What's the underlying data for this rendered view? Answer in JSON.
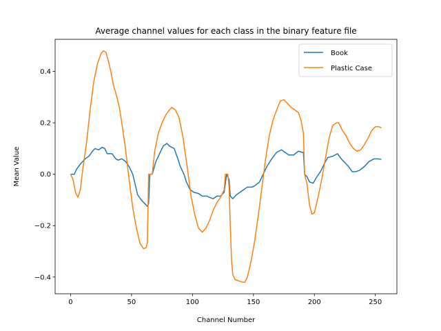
{
  "chart_data": {
    "type": "line",
    "title": "Average channel values for each class in the binary feature file",
    "xlabel": "Channel Number",
    "ylabel": "Mean Value",
    "xlim": [
      -12.7,
      267.7
    ],
    "ylim": [
      -0.465,
      0.525
    ],
    "xticks": [
      0,
      50,
      100,
      150,
      200,
      250
    ],
    "yticks": [
      -0.4,
      -0.2,
      0.0,
      0.2,
      0.4
    ],
    "grid": false,
    "legend_position": "top-right",
    "series": [
      {
        "name": "Book",
        "color": "#1f77b4",
        "points": [
          [
            0,
            0.0
          ],
          [
            3,
            0.0
          ],
          [
            5,
            0.02
          ],
          [
            8,
            0.04
          ],
          [
            12,
            0.06
          ],
          [
            15,
            0.07
          ],
          [
            18,
            0.09
          ],
          [
            20,
            0.1
          ],
          [
            23,
            0.095
          ],
          [
            26,
            0.105
          ],
          [
            28,
            0.1
          ],
          [
            30,
            0.08
          ],
          [
            34,
            0.08
          ],
          [
            37,
            0.06
          ],
          [
            39,
            0.055
          ],
          [
            42,
            0.06
          ],
          [
            45,
            0.05
          ],
          [
            48,
            0.03
          ],
          [
            51,
            0.0
          ],
          [
            53,
            -0.04
          ],
          [
            55,
            -0.08
          ],
          [
            58,
            -0.1
          ],
          [
            61,
            -0.115
          ],
          [
            63,
            -0.125
          ],
          [
            64,
            -0.115
          ],
          [
            65,
            0.0
          ],
          [
            67,
            0.0
          ],
          [
            70,
            0.05
          ],
          [
            73,
            0.08
          ],
          [
            76,
            0.11
          ],
          [
            79,
            0.12
          ],
          [
            81,
            0.11
          ],
          [
            85,
            0.1
          ],
          [
            88,
            0.06
          ],
          [
            90,
            0.03
          ],
          [
            93,
            0.0
          ],
          [
            95,
            -0.03
          ],
          [
            98,
            -0.06
          ],
          [
            101,
            -0.07
          ],
          [
            105,
            -0.075
          ],
          [
            108,
            -0.085
          ],
          [
            112,
            -0.085
          ],
          [
            114,
            -0.09
          ],
          [
            117,
            -0.095
          ],
          [
            120,
            -0.085
          ],
          [
            123,
            -0.085
          ],
          [
            126,
            -0.07
          ],
          [
            128,
            0.0
          ],
          [
            130,
            -0.02
          ],
          [
            131,
            -0.085
          ],
          [
            133,
            -0.095
          ],
          [
            136,
            -0.08
          ],
          [
            139,
            -0.07
          ],
          [
            142,
            -0.06
          ],
          [
            145,
            -0.05
          ],
          [
            149,
            -0.05
          ],
          [
            151,
            -0.045
          ],
          [
            155,
            -0.03
          ],
          [
            158,
            0.0
          ],
          [
            161,
            0.03
          ],
          [
            165,
            0.06
          ],
          [
            169,
            0.085
          ],
          [
            173,
            0.095
          ],
          [
            176,
            0.085
          ],
          [
            179,
            0.075
          ],
          [
            183,
            0.075
          ],
          [
            187,
            0.09
          ],
          [
            190,
            0.085
          ],
          [
            191,
            0.085
          ],
          [
            192,
            0.0
          ],
          [
            194,
            -0.01
          ],
          [
            196,
            -0.03
          ],
          [
            199,
            -0.035
          ],
          [
            202,
            -0.01
          ],
          [
            205,
            0.01
          ],
          [
            208,
            0.04
          ],
          [
            211,
            0.065
          ],
          [
            215,
            0.07
          ],
          [
            219,
            0.08
          ],
          [
            222,
            0.06
          ],
          [
            225,
            0.045
          ],
          [
            228,
            0.03
          ],
          [
            231,
            0.01
          ],
          [
            234,
            0.01
          ],
          [
            237,
            0.015
          ],
          [
            241,
            0.03
          ],
          [
            245,
            0.05
          ],
          [
            249,
            0.06
          ],
          [
            252,
            0.06
          ],
          [
            255,
            0.058
          ]
        ]
      },
      {
        "name": "Plastic Case",
        "color": "#ff7f0e",
        "points": [
          [
            0,
            0.0
          ],
          [
            2,
            -0.02
          ],
          [
            4,
            -0.07
          ],
          [
            6,
            -0.09
          ],
          [
            8,
            -0.06
          ],
          [
            10,
            0.02
          ],
          [
            13,
            0.12
          ],
          [
            16,
            0.25
          ],
          [
            19,
            0.36
          ],
          [
            22,
            0.43
          ],
          [
            25,
            0.47
          ],
          [
            27,
            0.48
          ],
          [
            29,
            0.475
          ],
          [
            31,
            0.44
          ],
          [
            33,
            0.4
          ],
          [
            35,
            0.35
          ],
          [
            38,
            0.3
          ],
          [
            40,
            0.26
          ],
          [
            42,
            0.2
          ],
          [
            45,
            0.1
          ],
          [
            48,
            -0.02
          ],
          [
            51,
            -0.13
          ],
          [
            54,
            -0.21
          ],
          [
            57,
            -0.27
          ],
          [
            60,
            -0.29
          ],
          [
            62,
            -0.285
          ],
          [
            63,
            -0.265
          ],
          [
            64,
            0.0
          ],
          [
            67,
            0.0
          ],
          [
            69,
            0.09
          ],
          [
            72,
            0.16
          ],
          [
            75,
            0.2
          ],
          [
            78,
            0.23
          ],
          [
            81,
            0.25
          ],
          [
            83,
            0.26
          ],
          [
            86,
            0.25
          ],
          [
            89,
            0.22
          ],
          [
            92,
            0.15
          ],
          [
            95,
            0.05
          ],
          [
            97,
            -0.02
          ],
          [
            99,
            -0.09
          ],
          [
            102,
            -0.16
          ],
          [
            105,
            -0.21
          ],
          [
            108,
            -0.225
          ],
          [
            111,
            -0.21
          ],
          [
            114,
            -0.18
          ],
          [
            117,
            -0.14
          ],
          [
            120,
            -0.11
          ],
          [
            123,
            -0.09
          ],
          [
            126,
            -0.06
          ],
          [
            127,
            0.0
          ],
          [
            129,
            0.0
          ],
          [
            130,
            -0.05
          ],
          [
            131,
            -0.2
          ],
          [
            132,
            -0.33
          ],
          [
            133,
            -0.39
          ],
          [
            135,
            -0.41
          ],
          [
            138,
            -0.415
          ],
          [
            141,
            -0.42
          ],
          [
            143,
            -0.42
          ],
          [
            145,
            -0.4
          ],
          [
            148,
            -0.34
          ],
          [
            151,
            -0.26
          ],
          [
            154,
            -0.16
          ],
          [
            157,
            -0.05
          ],
          [
            160,
            0.06
          ],
          [
            163,
            0.15
          ],
          [
            166,
            0.21
          ],
          [
            169,
            0.25
          ],
          [
            172,
            0.285
          ],
          [
            175,
            0.29
          ],
          [
            178,
            0.275
          ],
          [
            181,
            0.26
          ],
          [
            184,
            0.25
          ],
          [
            187,
            0.24
          ],
          [
            189,
            0.21
          ],
          [
            191,
            0.16
          ],
          [
            192,
            0.0
          ],
          [
            194,
            -0.04
          ],
          [
            196,
            -0.12
          ],
          [
            198,
            -0.155
          ],
          [
            200,
            -0.15
          ],
          [
            203,
            -0.09
          ],
          [
            206,
            -0.02
          ],
          [
            209,
            0.06
          ],
          [
            212,
            0.14
          ],
          [
            215,
            0.19
          ],
          [
            218,
            0.2
          ],
          [
            220,
            0.2
          ],
          [
            223,
            0.17
          ],
          [
            226,
            0.15
          ],
          [
            229,
            0.12
          ],
          [
            232,
            0.1
          ],
          [
            235,
            0.09
          ],
          [
            238,
            0.095
          ],
          [
            241,
            0.115
          ],
          [
            244,
            0.14
          ],
          [
            247,
            0.17
          ],
          [
            250,
            0.185
          ],
          [
            253,
            0.185
          ],
          [
            255,
            0.18
          ]
        ]
      }
    ]
  }
}
